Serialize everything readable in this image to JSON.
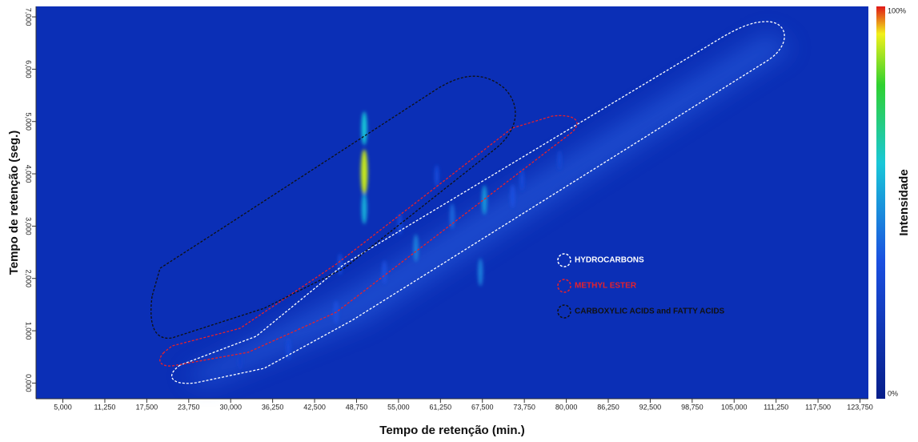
{
  "chart_data": {
    "type": "heatmap",
    "xlabel": "Tempo de retenção (min.)",
    "ylabel": "Tempo de retenção (seg.)",
    "xlim": [
      1,
      125
    ],
    "ylim": [
      -0.3,
      7.2
    ],
    "xticks": [
      {
        "value": 5,
        "label": "5,000"
      },
      {
        "value": 11.25,
        "label": "11,250"
      },
      {
        "value": 17.5,
        "label": "17,500"
      },
      {
        "value": 23.75,
        "label": "23,750"
      },
      {
        "value": 30,
        "label": "30,000"
      },
      {
        "value": 36.25,
        "label": "36,250"
      },
      {
        "value": 42.5,
        "label": "42,500"
      },
      {
        "value": 48.75,
        "label": "48,750"
      },
      {
        "value": 55,
        "label": "55,000"
      },
      {
        "value": 61.25,
        "label": "61,250"
      },
      {
        "value": 67.5,
        "label": "67,500"
      },
      {
        "value": 73.75,
        "label": "73,750"
      },
      {
        "value": 80,
        "label": "80,000"
      },
      {
        "value": 86.25,
        "label": "86,250"
      },
      {
        "value": 92.5,
        "label": "92,500"
      },
      {
        "value": 98.75,
        "label": "98,750"
      },
      {
        "value": 105,
        "label": "105,000"
      },
      {
        "value": 111.25,
        "label": "111,250"
      },
      {
        "value": 117.5,
        "label": "117,500"
      },
      {
        "value": 123.75,
        "label": "123,750"
      }
    ],
    "yticks": [
      {
        "value": 0,
        "label": "0,000"
      },
      {
        "value": 1,
        "label": "1,000"
      },
      {
        "value": 2,
        "label": "2,000"
      },
      {
        "value": 3,
        "label": "3,000"
      },
      {
        "value": 4,
        "label": "4,000"
      },
      {
        "value": 5,
        "label": "5,000"
      },
      {
        "value": 6,
        "label": "6,000"
      },
      {
        "value": 7,
        "label": "7,000"
      }
    ],
    "colorbar": {
      "label": "Intensidade",
      "ticks": [
        {
          "value": 0,
          "label": "0%"
        },
        {
          "value": 100,
          "label": "100%"
        }
      ]
    },
    "peaks": {
      "x": [
        49.9,
        49.9,
        49.9,
        67.2,
        67.8,
        63,
        57.6,
        52.9,
        45.7,
        38.6,
        73.4,
        79,
        60.7,
        46.3,
        31.4,
        55.2,
        72
      ],
      "y": [
        4.03,
        4.87,
        3.34,
        2.12,
        3.5,
        3.19,
        2.58,
        2.12,
        1.35,
        0.66,
        3.88,
        4.26,
        3.96,
        2.27,
        0.43,
        3.04,
        3.57
      ],
      "intensity": [
        90,
        60,
        55,
        45,
        50,
        40,
        45,
        35,
        35,
        30,
        30,
        25,
        30,
        30,
        20,
        30,
        35
      ]
    },
    "regions": [
      {
        "name": "HYDROCARBONS",
        "color": "#ffffff"
      },
      {
        "name": "METHYL ESTER",
        "color": "#e8202a"
      },
      {
        "name": "CARBOXYLIC ACIDS and FATTY ACIDS",
        "color": "#111111"
      }
    ]
  }
}
